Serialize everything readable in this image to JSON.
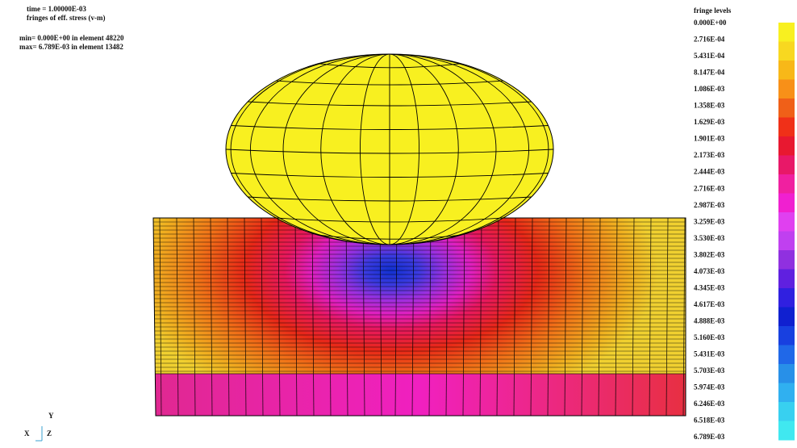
{
  "header": {
    "time": "time = 1.00000E-03",
    "fringe": "fringes of eff. stress (v-m)",
    "min": "min= 0.000E+00 in element 48220",
    "max": "max= 6.789E-03 in element 13482"
  },
  "legend": {
    "title": "fringe levels",
    "levels": [
      "0.000E+00",
      "2.716E-04",
      "5.431E-04",
      "8.147E-04",
      "1.086E-03",
      "1.358E-03",
      "1.629E-03",
      "1.901E-03",
      "2.173E-03",
      "2.444E-03",
      "2.716E-03",
      "2.987E-03",
      "3.259E-03",
      "3.530E-03",
      "3.802E-03",
      "4.073E-03",
      "4.345E-03",
      "4.617E-03",
      "4.888E-03",
      "5.160E-03",
      "5.431E-03",
      "5.703E-03",
      "5.974E-03",
      "6.246E-03",
      "6.518E-03",
      "6.789E-03"
    ]
  },
  "triad": {
    "y": "Y",
    "x": "X",
    "z": "Z"
  }
}
